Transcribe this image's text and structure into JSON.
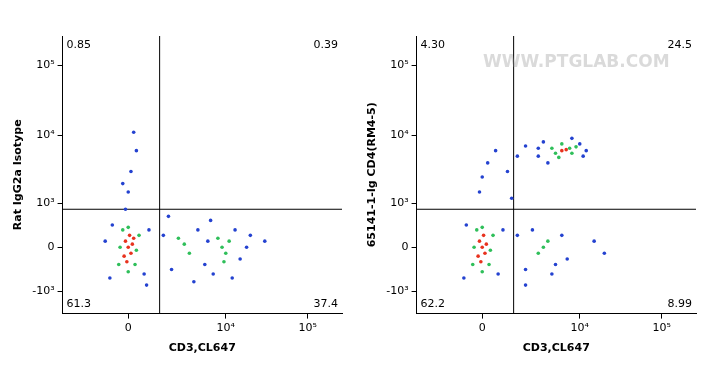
{
  "chart_data": [
    {
      "type": "scatter",
      "x_label": "CD3,CL647",
      "y_label": "Rat IgG2a Isotype",
      "xlim": [
        -4000,
        262144
      ],
      "ylim": [
        -2200,
        262144
      ],
      "xticks": [
        0,
        {
          "value": 10000,
          "label": "10⁴"
        },
        {
          "value": 100000,
          "label": "10⁵"
        }
      ],
      "yticks": [
        {
          "value": -1000,
          "label": "-10³"
        },
        0,
        {
          "value": 1000,
          "label": "10³"
        },
        {
          "value": 10000,
          "label": "10⁴"
        },
        {
          "value": 100000,
          "label": "10⁵"
        }
      ],
      "gate": {
        "x": 1300,
        "y": 800
      },
      "quadrants": [
        {
          "position": "upper left",
          "value": 0.85
        },
        {
          "position": "upper right",
          "value": 0.39
        },
        {
          "position": "lower left",
          "value": 61.3
        },
        {
          "position": "lower right",
          "value": 37.4
        }
      ],
      "series": [
        {
          "color": "#2442d0",
          "x": [
            -600,
            600,
            800,
            -700,
            1500,
            2000,
            4500,
            5500,
            6000,
            7000,
            13000,
            15000,
            18000,
            12000,
            20000,
            1800,
            0,
            100,
            -200,
            300,
            200,
            -100,
            4000,
            700,
            -900,
            30000,
            6500
          ],
          "values": [
            400,
            -500,
            300,
            -600,
            200,
            -400,
            300,
            -300,
            100,
            -500,
            300,
            -200,
            0,
            -600,
            200,
            600,
            1500,
            3000,
            2000,
            6000,
            11000,
            800,
            -700,
            -800,
            100,
            100,
            500
          ]
        },
        {
          "color": "#2fbf5a",
          "x": [
            -300,
            300,
            0,
            -200,
            250,
            -350,
            400,
            0,
            9000,
            10000,
            8000,
            11000,
            9500,
            3000,
            3500,
            2500
          ],
          "values": [
            0,
            -50,
            350,
            300,
            -300,
            -300,
            200,
            -450,
            0,
            -100,
            150,
            100,
            -250,
            50,
            -100,
            150
          ]
        },
        {
          "color": "#e8321e",
          "x": [
            0,
            -100,
            100,
            50,
            -150,
            150,
            -50,
            200
          ],
          "values": [
            0,
            100,
            -100,
            200,
            -150,
            50,
            -250,
            150
          ]
        }
      ]
    },
    {
      "type": "scatter",
      "x_label": "CD3,CL647",
      "y_label": "65141-1-Ig CD4(RM4-5)",
      "annotation": "WWW.PTGLAB.COM",
      "xlim": [
        -4000,
        262144
      ],
      "ylim": [
        -2200,
        262144
      ],
      "xticks": [
        0,
        {
          "value": 10000,
          "label": "10⁴"
        },
        {
          "value": 100000,
          "label": "10⁵"
        }
      ],
      "yticks": [
        {
          "value": -1000,
          "label": "-10³"
        },
        0,
        {
          "value": 1000,
          "label": "10³"
        },
        {
          "value": 10000,
          "label": "10⁴"
        },
        {
          "value": 100000,
          "label": "10⁵"
        }
      ],
      "gate": {
        "x": 1300,
        "y": 800
      },
      "quadrants": [
        {
          "position": "upper left",
          "value": 4.3,
          "label": "4.30"
        },
        {
          "position": "upper right",
          "value": 24.5
        },
        {
          "position": "lower left",
          "value": 62.2
        },
        {
          "position": "lower right",
          "value": 8.99
        }
      ],
      "series": [
        {
          "color": "#2442d0",
          "x": [
            -600,
            600,
            800,
            -700,
            1500,
            2000,
            5000,
            6000,
            2500,
            4500,
            -100,
            0,
            200,
            500,
            1000,
            1500,
            2000,
            3000,
            3500,
            3000,
            10000,
            12000,
            11000,
            4000,
            8000,
            2000,
            7000,
            20000,
            15000,
            1200
          ],
          "values": [
            400,
            -500,
            300,
            -600,
            200,
            -400,
            -300,
            200,
            300,
            -500,
            1500,
            2500,
            4000,
            6000,
            3000,
            5000,
            7000,
            5000,
            8000,
            6500,
            7500,
            6000,
            5000,
            4000,
            9000,
            -800,
            -200,
            -100,
            100,
            1200
          ]
        },
        {
          "color": "#2fbf5a",
          "x": [
            -300,
            300,
            0,
            -200,
            250,
            -350,
            400,
            0,
            5000,
            7500,
            8000,
            4500,
            6000,
            5500,
            9000,
            3500,
            4000,
            3000
          ],
          "values": [
            0,
            -50,
            350,
            300,
            -300,
            -300,
            200,
            -450,
            5500,
            6500,
            5500,
            6500,
            7500,
            4800,
            6800,
            0,
            100,
            -100
          ]
        },
        {
          "color": "#e8321e",
          "x": [
            0,
            -100,
            100,
            50,
            -150,
            150,
            -50,
            6000,
            6800
          ],
          "values": [
            0,
            100,
            -100,
            200,
            -150,
            50,
            -250,
            6000,
            6200
          ]
        }
      ]
    }
  ]
}
